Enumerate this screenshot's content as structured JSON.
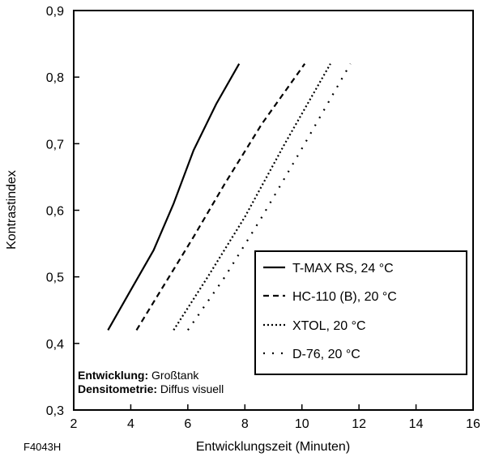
{
  "figure_id": "F4043H",
  "notes": {
    "line1_bold": "Entwicklung:",
    "line1_text": " Großtank",
    "line2_bold": "Densitometrie:",
    "line2_text": " Diffus visuell"
  },
  "chart_data": {
    "type": "line",
    "title": "",
    "xlabel": "Entwicklungszeit (Minuten)",
    "ylabel": "Kontrastindex",
    "xlim": [
      2,
      16
    ],
    "ylim": [
      0.3,
      0.9
    ],
    "x_ticks": [
      2,
      4,
      6,
      8,
      10,
      12,
      14,
      16
    ],
    "x_tick_labels": [
      "2",
      "4",
      "6",
      "8",
      "10",
      "12",
      "14",
      "16"
    ],
    "y_ticks": [
      0.3,
      0.4,
      0.5,
      0.6,
      0.7,
      0.8,
      0.9
    ],
    "y_tick_labels": [
      "0,3",
      "0,4",
      "0,5",
      "0,6",
      "0,7",
      "0,8",
      "0,9"
    ],
    "grid": false,
    "legend_position": "bottom-right",
    "series": [
      {
        "name": "T-MAX RS, 24 °C",
        "style": "solid",
        "x": [
          3.2,
          4.0,
          4.8,
          5.5,
          6.2,
          7.0,
          7.8
        ],
        "y": [
          0.42,
          0.48,
          0.54,
          0.61,
          0.69,
          0.76,
          0.82
        ]
      },
      {
        "name": "HC-110 (B), 20 °C",
        "style": "dashed",
        "x": [
          4.2,
          5.2,
          6.2,
          7.3,
          8.6,
          10.1
        ],
        "y": [
          0.42,
          0.49,
          0.56,
          0.64,
          0.73,
          0.82
        ]
      },
      {
        "name": "XTOL, 20 °C",
        "style": "dotted",
        "x": [
          5.5,
          6.7,
          8.0,
          9.4,
          11.0
        ],
        "y": [
          0.42,
          0.5,
          0.59,
          0.7,
          0.82
        ]
      },
      {
        "name": "D-76, 20 °C",
        "style": "sparse-dot",
        "x": [
          6.0,
          7.3,
          8.6,
          10.1,
          11.7
        ],
        "y": [
          0.42,
          0.5,
          0.59,
          0.7,
          0.82
        ]
      }
    ]
  }
}
